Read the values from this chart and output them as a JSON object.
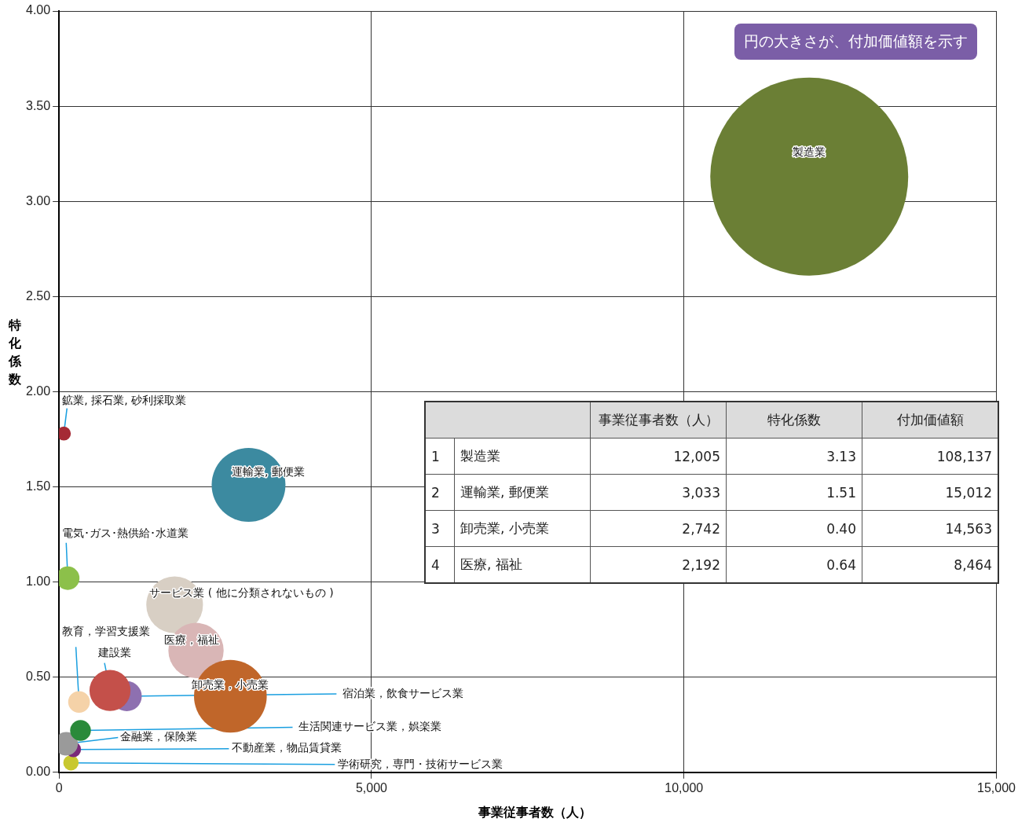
{
  "chart_data": {
    "type": "bubble",
    "xlabel": "事業従事者数（人）",
    "ylabel": "特化係数",
    "xlim": [
      0,
      15000
    ],
    "xticks": [
      0,
      {
        "value": 5000,
        "label": "5,000"
      },
      {
        "value": 10000,
        "label": "10,000"
      },
      {
        "value": 15000,
        "label": "15,000"
      }
    ],
    "ylim": [
      0,
      4
    ],
    "yticks": [
      {
        "value": 0,
        "label": "0.00"
      },
      {
        "value": 0.5,
        "label": "0.50"
      },
      {
        "value": 1,
        "label": "1.00"
      },
      {
        "value": 1.5,
        "label": "1.50"
      },
      {
        "value": 2,
        "label": "2.00"
      },
      {
        "value": 2.5,
        "label": "2.50"
      },
      {
        "value": 3,
        "label": "3.00"
      },
      {
        "value": 3.5,
        "label": "3.50"
      },
      {
        "value": 4,
        "label": "4.00"
      }
    ],
    "grid": true,
    "legend": false,
    "series": [
      {
        "name": "製造業",
        "color": "#6b7f35",
        "x": [
          12005
        ],
        "values": [
          3.13
        ],
        "sizes": [
          1
        ]
      },
      {
        "name": "運輸業, 郵便業",
        "color": "#3c8aa0",
        "x": [
          3033
        ],
        "values": [
          1.51
        ],
        "sizes": [
          0.139
        ]
      },
      {
        "name": "卸売業，小売業",
        "color": "#c0662a",
        "x": [
          2742
        ],
        "values": [
          0.4
        ],
        "sizes": [
          0.135
        ]
      },
      {
        "name": "医療，福祉",
        "color": "#d9b6b6",
        "x": [
          2192
        ],
        "values": [
          0.64
        ],
        "sizes": [
          0.078
        ]
      },
      {
        "name": "サービス業 ( 他に分類されないもの )",
        "color": "#d8cfc4",
        "x": [
          1850
        ],
        "values": [
          0.88
        ],
        "sizes": [
          0.082
        ]
      },
      {
        "name": "鉱業, 採石業, 砂利採取業",
        "color": "#a52a35",
        "x": [
          77
        ],
        "values": [
          1.78
        ],
        "sizes": [
          0.005
        ]
      },
      {
        "name": "電気･ガス･熱供給･水道業",
        "color": "#8cc04a",
        "x": [
          140
        ],
        "values": [
          1.02
        ],
        "sizes": [
          0.014
        ]
      },
      {
        "name": "教育，学習支援業",
        "color": "#f5d2a8",
        "x": [
          320
        ],
        "values": [
          0.37
        ],
        "sizes": [
          0.012
        ]
      },
      {
        "name": "建設業",
        "color": "#c4504a",
        "x": [
          816
        ],
        "values": [
          0.43
        ],
        "sizes": [
          0.043
        ]
      },
      {
        "name": "宿泊業，飲食サービス業",
        "color": "#8e70b0",
        "x": [
          1084
        ],
        "values": [
          0.4
        ],
        "sizes": [
          0.023
        ]
      },
      {
        "name": "生活関連サービス業，娯楽業",
        "color": "#2a8a3a",
        "x": [
          344
        ],
        "values": [
          0.22
        ],
        "sizes": [
          0.011
        ]
      },
      {
        "name": "金融業，保険業",
        "color": "#9a9a9a",
        "x": [
          115
        ],
        "values": [
          0.15
        ],
        "sizes": [
          0.014
        ]
      },
      {
        "name": "不動産業，物品賃貸業",
        "color": "#7a2a7a",
        "x": [
          230
        ],
        "values": [
          0.12
        ],
        "sizes": [
          0.006
        ]
      },
      {
        "name": "学術研究，専門・技術サービス業",
        "color": "#c8c830",
        "x": [
          191
        ],
        "values": [
          0.05
        ],
        "sizes": [
          0.006
        ]
      }
    ],
    "annotations": [
      "円の大きさが、付加価値額を示す",
      "事業従事者数（人）",
      "特化係数",
      "付加価値額",
      "1",
      "製造業",
      "12,005",
      "3.13",
      "108,137",
      "2",
      "運輸業, 郵便業",
      "3,033",
      "1.51",
      "15,012",
      "3",
      "卸売業, 小売業",
      "2,742",
      "0.40",
      "14,563",
      "4",
      "医療, 福祉",
      "2,192",
      "0.64",
      "8,464"
    ]
  }
}
